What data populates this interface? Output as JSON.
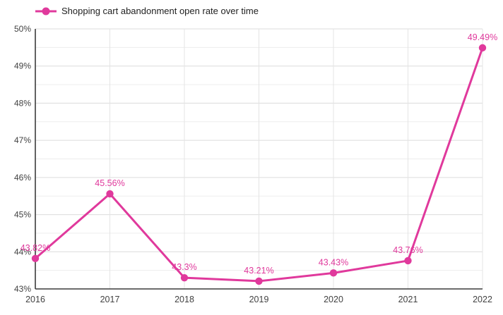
{
  "legend": {
    "label": "Shopping cart abandonment open rate over time"
  },
  "colors": {
    "series": "#e0399c",
    "grid_major": "#dcdcdc",
    "grid_minor": "#ededed",
    "grid_vertical": "#e4e4e4",
    "axis": "#3b3b3b",
    "axis_text": "#424242",
    "legend_text": "#212121",
    "background": "#ffffff"
  },
  "chart_data": {
    "type": "line",
    "title": "Shopping cart abandonment open rate over time",
    "categories": [
      "2016",
      "2017",
      "2018",
      "2019",
      "2020",
      "2021",
      "2022"
    ],
    "series": [
      {
        "name": "Shopping cart abandonment open rate over time",
        "values": [
          43.82,
          45.56,
          43.3,
          43.21,
          43.43,
          43.76,
          49.49
        ]
      }
    ],
    "point_labels": [
      "43.82%",
      "45.56%",
      "43.3%",
      "43.21%",
      "43.43%",
      "43.76%",
      "49.49%"
    ],
    "xlabel": "",
    "ylabel": "",
    "ylim": [
      43,
      50
    ],
    "ytick_step": 1,
    "ytick_labels": [
      "43%",
      "44%",
      "45%",
      "46%",
      "47%",
      "48%",
      "49%",
      "50%"
    ],
    "minor_grid_step": 0.5,
    "grid": true,
    "legend_position": "top-left"
  }
}
